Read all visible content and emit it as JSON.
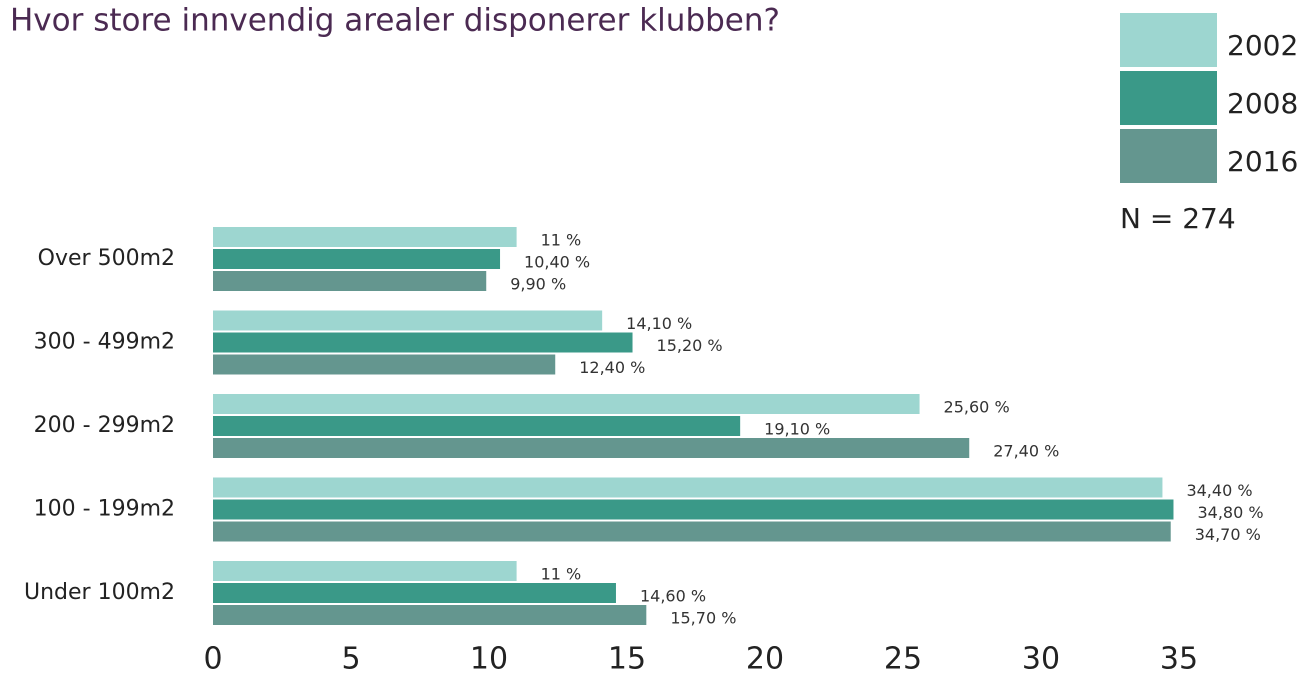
{
  "chart_data": {
    "type": "bar",
    "orientation": "horizontal",
    "title": "Hvor store innvendig arealer disponerer klubben?",
    "annotation": "N = 274",
    "categories": [
      "Over 500m2",
      "300 - 499m2",
      "200 - 299m2",
      "100 - 199m2",
      "Under 100m2"
    ],
    "series": [
      {
        "name": "2002",
        "color": "#9dd6d0",
        "values": [
          11,
          14.1,
          25.6,
          34.4,
          11
        ],
        "value_labels": [
          "11 %",
          "14,10 %",
          "25,60 %",
          "34,40 %",
          "11 %"
        ]
      },
      {
        "name": "2008",
        "color": "#3a9988",
        "values": [
          10.4,
          15.2,
          19.1,
          34.8,
          14.6
        ],
        "value_labels": [
          "10,40 %",
          "15,20 %",
          "19,10 %",
          "34,80 %",
          "14,60 %"
        ]
      },
      {
        "name": "2016",
        "color": "#64968f",
        "values": [
          9.9,
          12.4,
          27.4,
          34.7,
          15.7
        ],
        "value_labels": [
          "9,90 %",
          "12,40 %",
          "27,40 %",
          "34,70 %",
          "15,70 %"
        ]
      }
    ],
    "xlim": [
      0,
      35
    ],
    "xticks": [
      0,
      5,
      10,
      15,
      20,
      25,
      30,
      35
    ],
    "grid": false,
    "legend": "top-right"
  }
}
